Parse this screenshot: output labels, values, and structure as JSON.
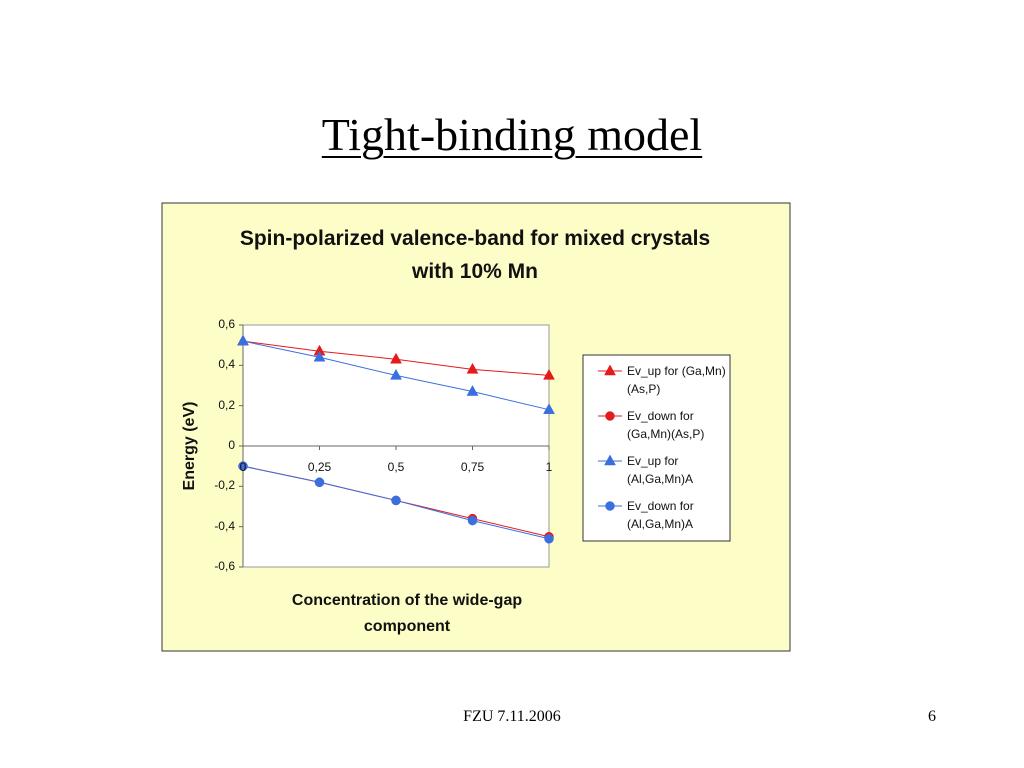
{
  "title": "Tight-binding model",
  "footer": "FZU 7.11.2006",
  "page_number": "6",
  "chart_data": {
    "type": "line",
    "title": "Spin-polarized valence-band for mixed crystals with 10% Mn",
    "xlabel": "Concentration of the wide-gap component",
    "ylabel": "Energy (eV)",
    "x": [
      0,
      0.25,
      0.5,
      0.75,
      1
    ],
    "xlim": [
      0,
      1
    ],
    "xticks": [
      0,
      {
        "value": 0.25,
        "label": "0,25"
      },
      {
        "value": 0.5,
        "label": "0,5"
      },
      {
        "value": 0.75,
        "label": "0,75"
      },
      1
    ],
    "ylim": [
      -0.6,
      0.6
    ],
    "yticks": [
      {
        "value": 0.6,
        "label": "0,6"
      },
      {
        "value": 0.4,
        "label": "0,4"
      },
      {
        "value": 0.2,
        "label": "0,2"
      },
      0,
      {
        "value": -0.2,
        "label": "-0,2"
      },
      {
        "value": -0.4,
        "label": "-0,4"
      },
      {
        "value": -0.6,
        "label": "-0,6"
      }
    ],
    "grid": false,
    "legend": "right",
    "series": [
      {
        "name": "Ev_up for (Ga,Mn)(As,P)",
        "color": "#e41a1c",
        "marker": "triangle",
        "values": [
          0.52,
          0.47,
          0.43,
          0.38,
          0.35
        ]
      },
      {
        "name": "Ev_down for (Ga,Mn)(As,P)",
        "color": "#e41a1c",
        "marker": "circle",
        "values": [
          -0.1,
          -0.18,
          -0.27,
          -0.36,
          -0.45
        ]
      },
      {
        "name": "Ev_up for (Al,Ga,Mn)A",
        "color": "#3a6fe0",
        "marker": "triangle",
        "values": [
          0.52,
          0.44,
          0.35,
          0.27,
          0.18
        ]
      },
      {
        "name": "Ev_down for (Al,Ga,Mn)A",
        "color": "#3a6fe0",
        "marker": "circle",
        "values": [
          -0.1,
          -0.18,
          -0.27,
          -0.37,
          -0.46
        ]
      }
    ]
  }
}
